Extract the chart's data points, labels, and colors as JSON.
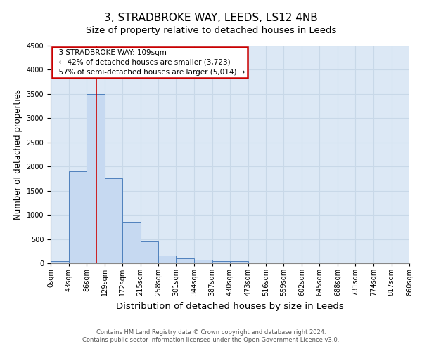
{
  "title1": "3, STRADBROKE WAY, LEEDS, LS12 4NB",
  "title2": "Size of property relative to detached houses in Leeds",
  "xlabel": "Distribution of detached houses by size in Leeds",
  "ylabel": "Number of detached properties",
  "bin_edges": [
    0,
    43,
    86,
    129,
    172,
    215,
    258,
    301,
    344,
    387,
    430,
    473,
    516,
    559,
    602,
    645,
    688,
    731,
    774,
    817,
    860
  ],
  "bar_heights": [
    50,
    1900,
    3500,
    1750,
    850,
    450,
    160,
    100,
    75,
    50,
    40,
    0,
    0,
    0,
    0,
    0,
    0,
    0,
    0,
    0
  ],
  "bar_color": "#c6d9f1",
  "bar_edgecolor": "#4f81bd",
  "vline_x": 109,
  "vline_color": "#cc0000",
  "ylim": [
    0,
    4500
  ],
  "yticks": [
    0,
    500,
    1000,
    1500,
    2000,
    2500,
    3000,
    3500,
    4000,
    4500
  ],
  "annotation_title": "3 STRADBROKE WAY: 109sqm",
  "annotation_line1": "← 42% of detached houses are smaller (3,723)",
  "annotation_line2": "57% of semi-detached houses are larger (5,014) →",
  "annotation_box_color": "#cc0000",
  "footer_line1": "Contains HM Land Registry data © Crown copyright and database right 2024.",
  "footer_line2": "Contains public sector information licensed under the Open Government Licence v3.0.",
  "grid_color": "#c8d8e8",
  "bg_color": "#dce8f5",
  "title1_fontsize": 11,
  "title2_fontsize": 9.5,
  "xlabel_fontsize": 9.5,
  "ylabel_fontsize": 8.5,
  "tick_label_fontsize": 7,
  "annotation_fontsize": 7.5,
  "footer_fontsize": 6
}
